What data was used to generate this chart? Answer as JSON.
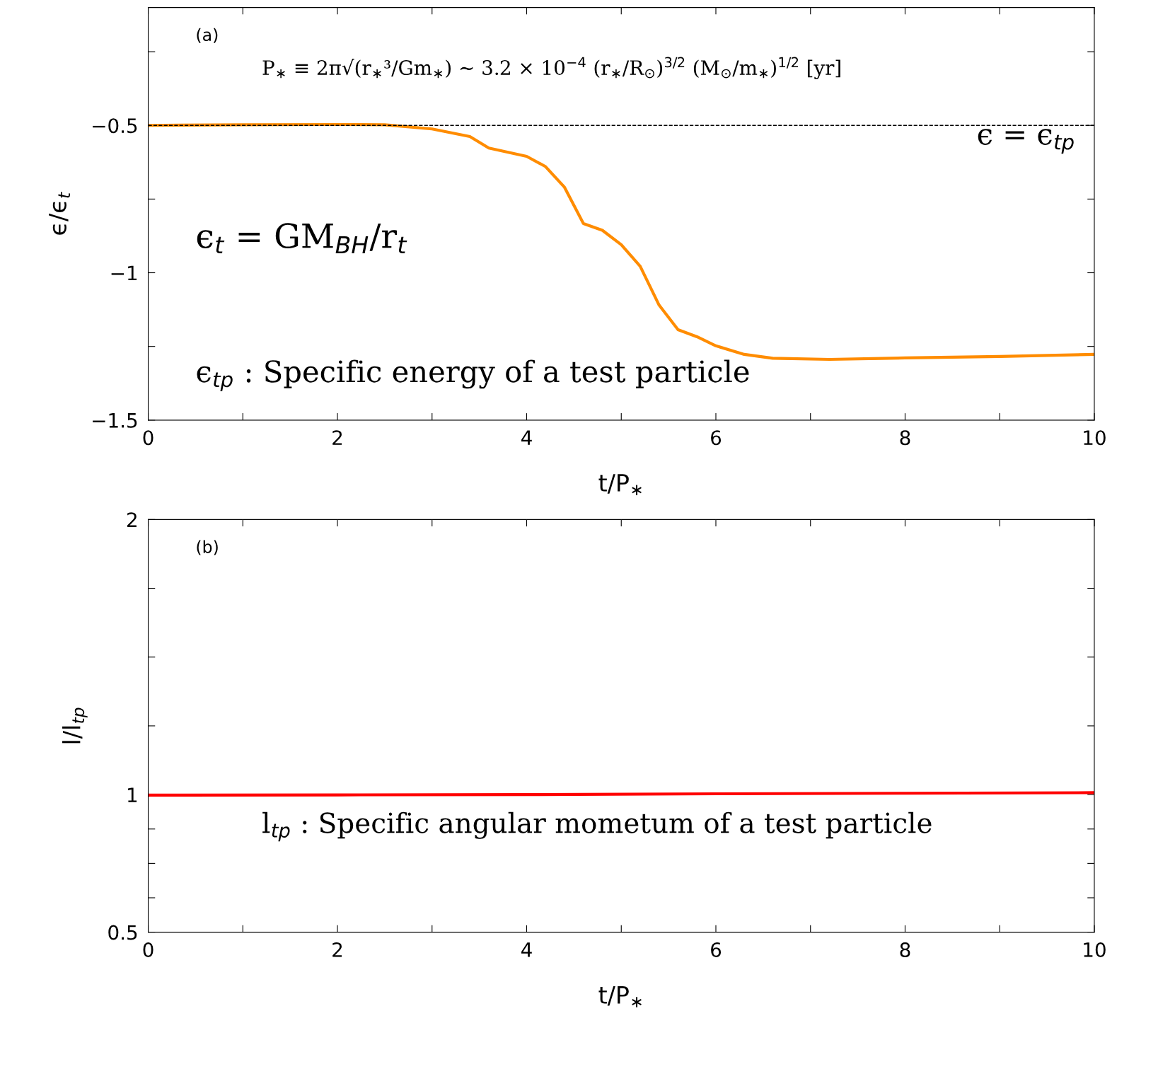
{
  "chart_data": [
    {
      "type": "line",
      "xlabel": "t/P$_{∗}$",
      "ylabel": "ϵ/ϵ$_{t}$",
      "x": [
        0,
        1,
        2,
        2.5,
        3,
        3.4,
        3.6,
        4,
        4.2,
        4.4,
        4.6,
        4.8,
        5,
        5.2,
        5.4,
        5.6,
        5.8,
        6,
        6.3,
        6.6,
        7.2,
        8,
        9,
        10
      ],
      "series": [
        {
          "color": "#ff8c00",
          "values": [
            -0.5,
            -0.498,
            -0.497,
            -0.498,
            -0.512,
            -0.538,
            -0.577,
            -0.605,
            -0.64,
            -0.71,
            -0.833,
            -0.856,
            -0.905,
            -0.978,
            -1.11,
            -1.193,
            -1.217,
            -1.248,
            -1.277,
            -1.29,
            -1.294,
            -1.289,
            -1.284,
            -1.277
          ]
        }
      ],
      "xlim": [
        0,
        10
      ],
      "ylim": [
        -1.5,
        -0.1
      ],
      "xticks": [
        0,
        {
          "value": 1,
          "label": null
        },
        2,
        {
          "value": 3,
          "label": null
        },
        4,
        {
          "value": 5,
          "label": null
        },
        6,
        {
          "value": 7,
          "label": null
        },
        8,
        {
          "value": 9,
          "label": null
        },
        10
      ],
      "yticks": [
        {
          "value": -1.5,
          "label": "−1.5"
        },
        {
          "value": -1.25,
          "label": null
        },
        {
          "value": -1,
          "label": "−1"
        },
        {
          "value": -0.75,
          "label": null
        },
        {
          "value": -0.5,
          "label": "−0.5"
        },
        {
          "value": -0.25,
          "label": null
        }
      ],
      "ref_lines": [
        {
          "axis": "y",
          "value": -0.5,
          "label": "ϵ = ϵ$_{tp}$",
          "color": "#000000",
          "line_style": "dashed"
        }
      ],
      "annotations": [
        "(a)",
        "P$_{∗}$ ≡ 2π√(r$_{∗}$³/Gm$_{∗}$) ∼ 3.2 × 10$^{−4}$ (r$_{∗}$/R$_{⊙}$)$^{3/2}$ (M$_{⊙}$/m$_{∗}$)$^{1/2}$ [yr]",
        "ϵ$_{t}$ = GM$_{BH}$/r$_{t}$",
        "ϵ$_{tp}$ : Specific energy of a test particle"
      ],
      "grid": false,
      "legend": false,
      "marker": "none",
      "line_style": "solid"
    },
    {
      "type": "line",
      "xlabel": "t/P$_{∗}$",
      "ylabel": "l/l$_{tp}$",
      "x": [
        0,
        2,
        4,
        6,
        8,
        10
      ],
      "series": [
        {
          "color": "#ff0000",
          "values": [
            0.998,
            0.999,
            1.0,
            1.003,
            1.005,
            1.007
          ]
        }
      ],
      "xlim": [
        0,
        10
      ],
      "ylim": [
        0.5,
        2
      ],
      "xticks": [
        0,
        {
          "value": 1,
          "label": null
        },
        2,
        {
          "value": 3,
          "label": null
        },
        4,
        {
          "value": 5,
          "label": null
        },
        6,
        {
          "value": 7,
          "label": null
        },
        8,
        {
          "value": 9,
          "label": null
        },
        10
      ],
      "yticks": [
        0.5,
        {
          "value": 0.625,
          "label": null
        },
        {
          "value": 0.75,
          "label": null
        },
        {
          "value": 0.875,
          "label": null
        },
        1,
        {
          "value": 1.25,
          "label": null
        },
        {
          "value": 1.5,
          "label": null
        },
        {
          "value": 1.75,
          "label": null
        },
        2
      ],
      "annotations": [
        "(b)",
        "l$_{tp}$ : Specific angular mometum of a test particle"
      ],
      "grid": false,
      "legend": false,
      "marker": "none",
      "line_style": "solid"
    }
  ]
}
